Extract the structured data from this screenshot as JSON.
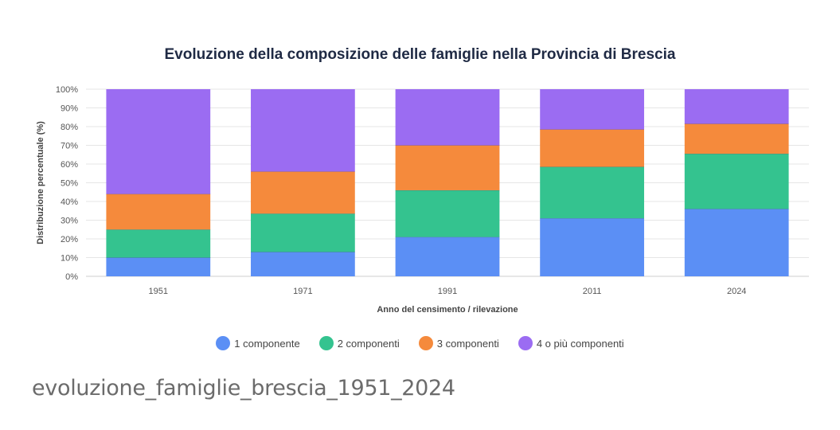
{
  "chart_data": {
    "type": "bar",
    "stacked": true,
    "title": "Evoluzione della composizione delle famiglie nella Provincia di Brescia",
    "xlabel": "Anno del censimento / rilevazione",
    "ylabel": "Distribuzione percentuale (%)",
    "ylim": [
      0,
      100
    ],
    "yticks": [
      "0%",
      "10%",
      "20%",
      "30%",
      "40%",
      "50%",
      "60%",
      "70%",
      "80%",
      "90%",
      "100%"
    ],
    "grid": true,
    "legend_position": "bottom",
    "categories": [
      "1951",
      "1971",
      "1991",
      "2011",
      "2024"
    ],
    "series": [
      {
        "name": "1 componente",
        "color": "#5b8ff5",
        "values": [
          10,
          13,
          21,
          31,
          36
        ]
      },
      {
        "name": "2 componenti",
        "color": "#34c38f",
        "values": [
          15,
          20.5,
          25,
          27.5,
          29.5
        ]
      },
      {
        "name": "3 componenti",
        "color": "#f58a3c",
        "values": [
          19,
          22.5,
          24,
          20,
          16
        ]
      },
      {
        "name": "4 o più componenti",
        "color": "#9b6cf2",
        "values": [
          56,
          44,
          30,
          21.5,
          18.5
        ]
      }
    ]
  },
  "caption": "evoluzione_famiglie_brescia_1951_2024"
}
